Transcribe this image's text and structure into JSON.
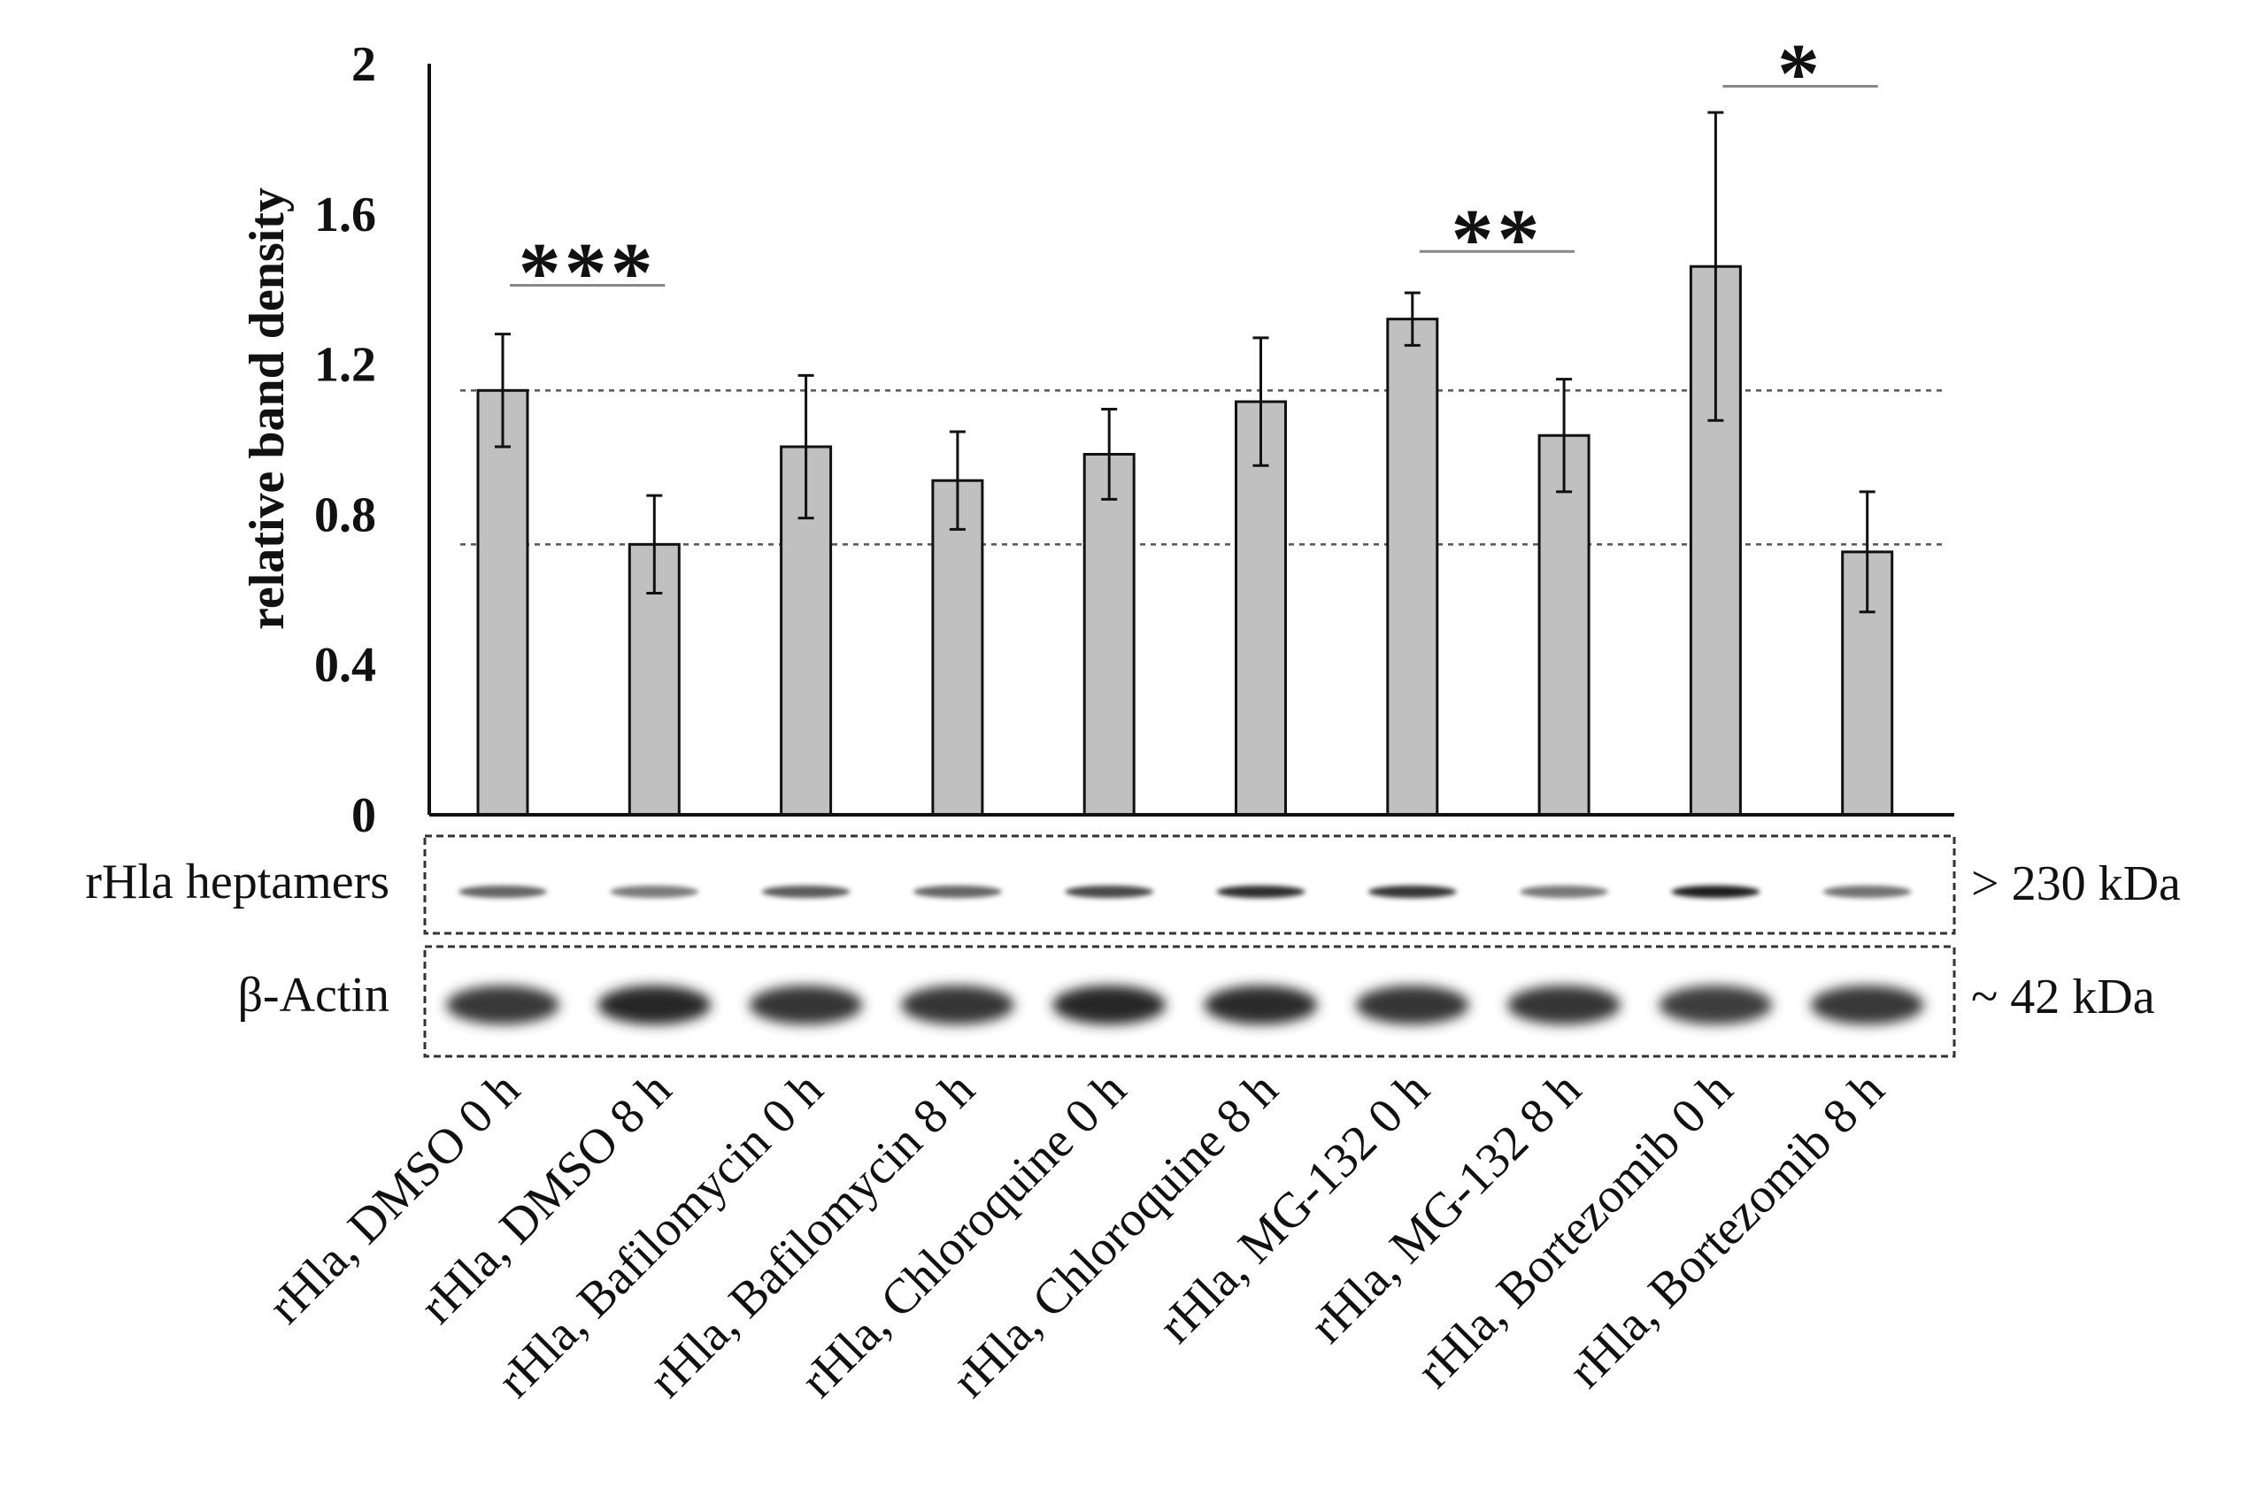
{
  "chart_data": {
    "type": "bar",
    "title": "",
    "xlabel": "",
    "ylabel": "relative band density",
    "ylim": [
      0,
      2
    ],
    "yticks": [
      "0",
      "0.4",
      "0.8",
      "1.2",
      "1.6",
      "2"
    ],
    "grid": false,
    "categories": [
      "rHla, DMSO 0 h",
      "rHla, DMSO 8 h",
      "rHla, Bafilomycin 0 h",
      "rHla, Bafilomycin 8 h",
      "rHla, Chloroquine 0 h",
      "rHla, Chloroquine 8 h",
      "rHla, MG-132 0 h",
      "rHla, MG-132 8 h",
      "rHla, Bortezomib 0 h",
      "rHla, Bortezomib 8 h"
    ],
    "values": [
      1.13,
      0.72,
      0.98,
      0.89,
      0.96,
      1.1,
      1.32,
      1.01,
      1.46,
      0.7
    ],
    "errors": [
      0.15,
      0.13,
      0.19,
      0.13,
      0.12,
      0.17,
      0.07,
      0.15,
      0.41,
      0.16
    ],
    "bar_color": "#c0c0c0",
    "reference_lines": [
      1.13,
      0.72
    ],
    "significance": [
      {
        "from": 0,
        "to": 1,
        "label": "***",
        "level": 1.41
      },
      {
        "from": 6,
        "to": 7,
        "label": "**",
        "level": 1.5
      },
      {
        "from": 8,
        "to": 9,
        "label": "*",
        "level": 1.94
      }
    ]
  },
  "blots": [
    {
      "label": "rHla heptamers",
      "size": "> 230 kDa",
      "intensities": [
        0.55,
        0.42,
        0.6,
        0.55,
        0.7,
        0.85,
        0.82,
        0.45,
        0.95,
        0.48
      ]
    },
    {
      "label": "β-Actin",
      "size": "~ 42 kDa",
      "intensities": [
        0.8,
        0.9,
        0.82,
        0.82,
        0.9,
        0.88,
        0.82,
        0.82,
        0.78,
        0.8
      ]
    }
  ]
}
